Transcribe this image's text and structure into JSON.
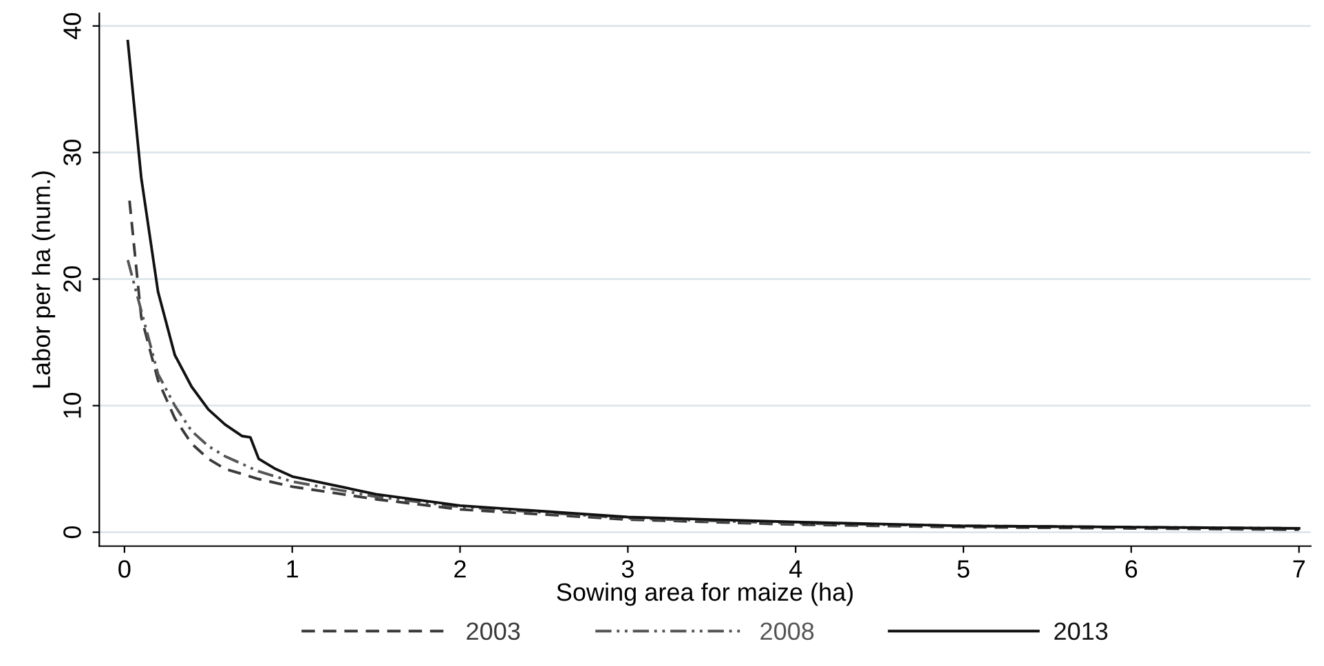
{
  "chart_data": {
    "type": "line",
    "xlabel": "Sowing area for maize (ha)",
    "ylabel": "Labor per ha (num.)",
    "xlim": [
      -0.15,
      7.07
    ],
    "ylim": [
      -1.1,
      41
    ],
    "xticks": [
      0,
      1,
      2,
      3,
      4,
      5,
      6,
      7
    ],
    "yticks": [
      0,
      10,
      20,
      30,
      40
    ],
    "grid": "y",
    "legend": "bottom",
    "marker": "none",
    "series": [
      {
        "name": "2003",
        "color": "#3a3a3a",
        "line_style": "dashed",
        "x": [
          0.03,
          0.1,
          0.2,
          0.3,
          0.4,
          0.5,
          0.6,
          0.8,
          1,
          1.5,
          2,
          3,
          4,
          5,
          6,
          7
        ],
        "values": [
          26.2,
          17,
          12,
          9,
          7,
          5.8,
          5,
          4.2,
          3.6,
          2.6,
          1.8,
          1.0,
          0.6,
          0.4,
          0.3,
          0.2
        ]
      },
      {
        "name": "2008",
        "color": "#555555",
        "line_style": "dashdot",
        "x": [
          0.02,
          0.1,
          0.2,
          0.3,
          0.4,
          0.5,
          0.6,
          0.8,
          1,
          1.5,
          2,
          3,
          4,
          5,
          6,
          7
        ],
        "values": [
          21.5,
          17.5,
          12.5,
          10,
          8,
          6.8,
          6,
          4.8,
          4,
          2.8,
          2,
          1.1,
          0.7,
          0.5,
          0.4,
          0.3
        ]
      },
      {
        "name": "2013",
        "color": "#111111",
        "line_style": "solid",
        "x": [
          0.02,
          0.1,
          0.2,
          0.3,
          0.4,
          0.5,
          0.6,
          0.7,
          0.75,
          0.8,
          0.9,
          1,
          1.5,
          2,
          3,
          4,
          5,
          6,
          7
        ],
        "values": [
          38.8,
          28,
          19,
          14,
          11.5,
          9.7,
          8.5,
          7.6,
          7.5,
          5.8,
          5,
          4.4,
          3,
          2.1,
          1.2,
          0.8,
          0.5,
          0.4,
          0.3
        ]
      }
    ]
  }
}
